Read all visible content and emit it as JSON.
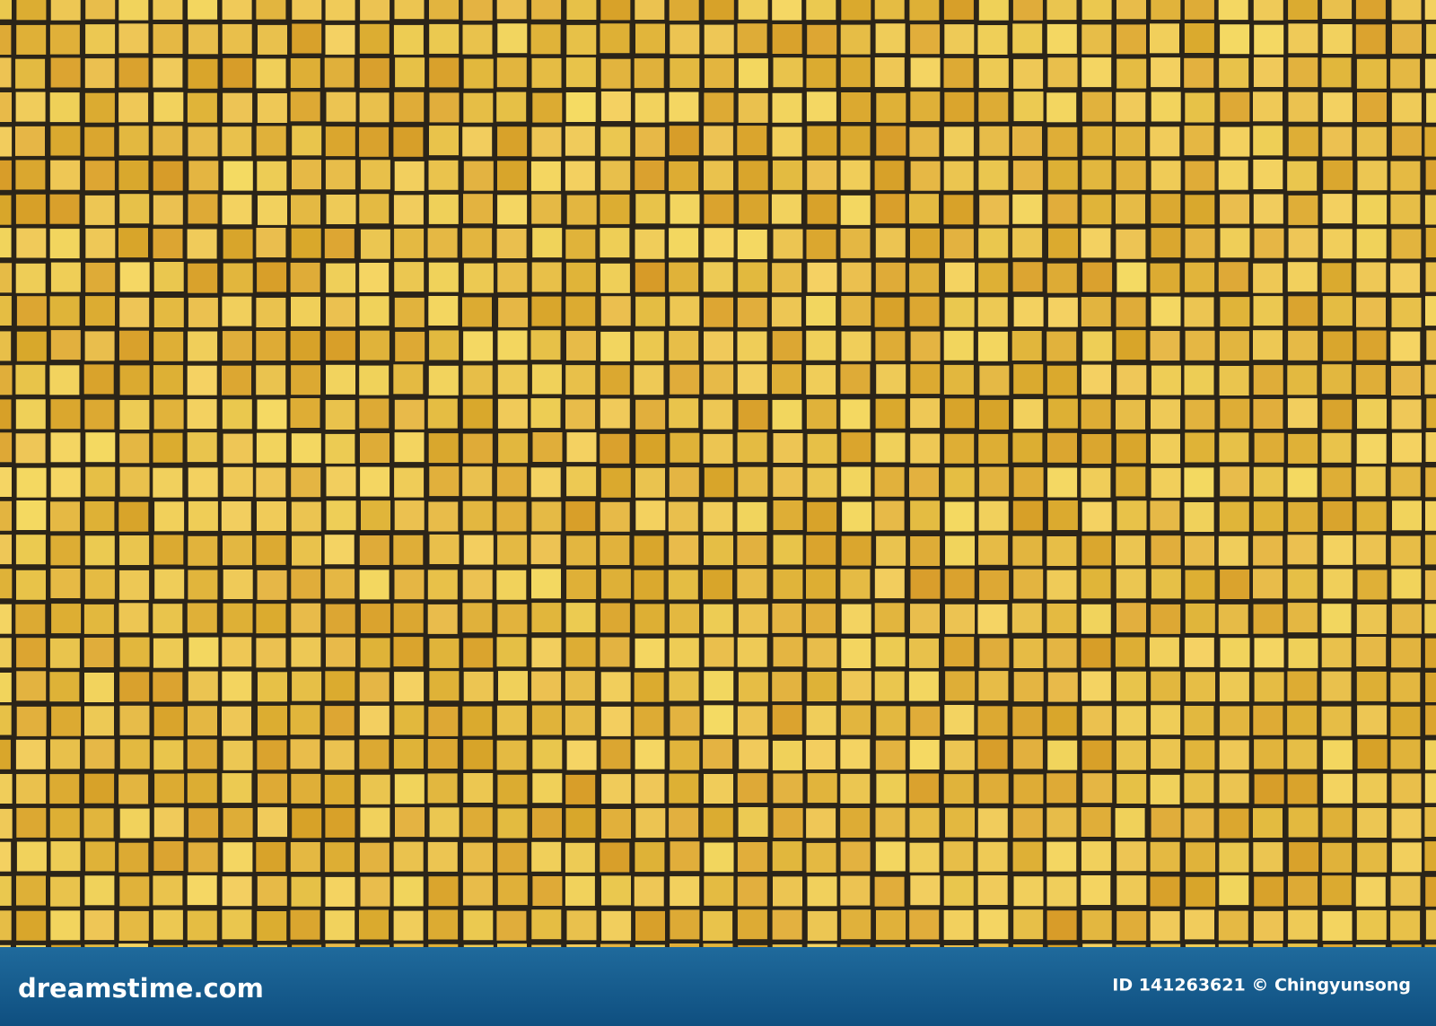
{
  "footer": {
    "logo": "dreamstime.com",
    "credit": "ID 141263621 © Chingyunsong"
  }
}
